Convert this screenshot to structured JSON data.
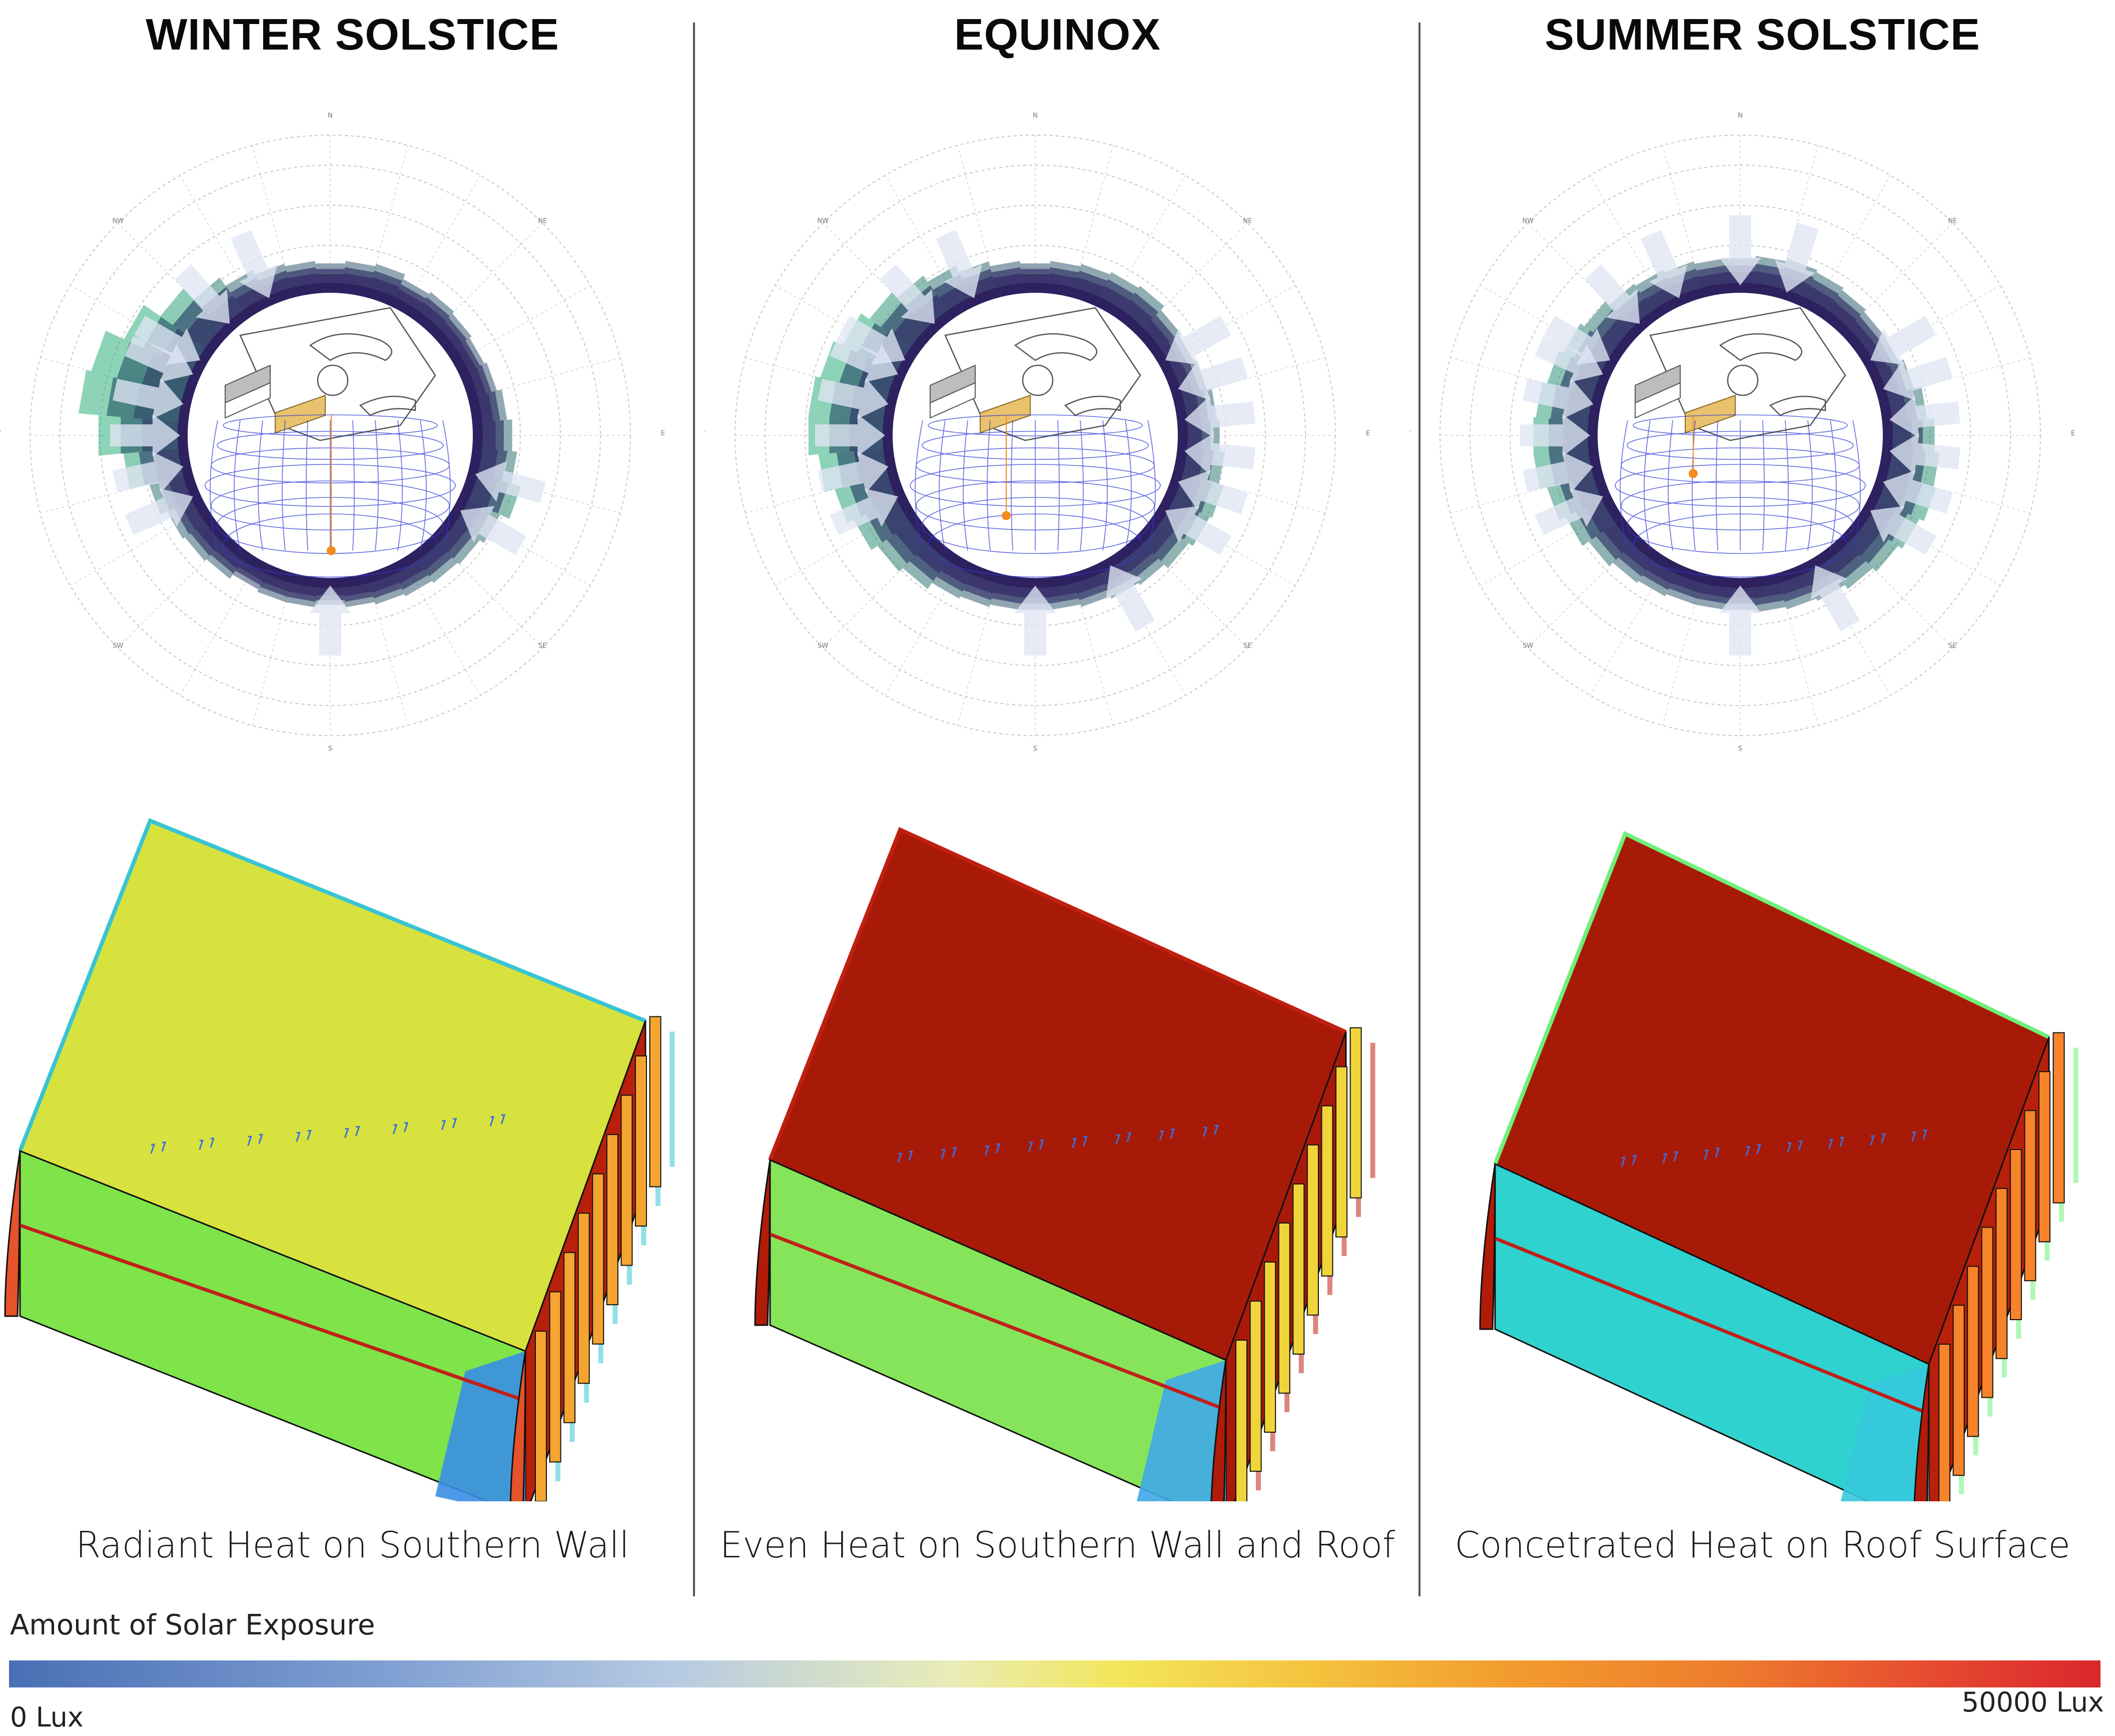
{
  "panels": [
    {
      "title": "WINTER SOLSTICE",
      "caption": "Radiant Heat on Southern Wall"
    },
    {
      "title": "EQUINOX",
      "caption": "Even Heat on Southern Wall and Roof"
    },
    {
      "title": "SUMMER SOLSTICE",
      "caption": "Concetrated Heat on Roof Surface"
    }
  ],
  "legend": {
    "title": "Amount of Solar Exposure",
    "min_label": "0 Lux",
    "max_label": "50000 Lux",
    "colors": [
      "#4a6fb5",
      "#b7cbe2",
      "#f3e65a",
      "#f29b2e",
      "#d9272c"
    ]
  },
  "colors": {
    "rose_low": "#3b2a6b",
    "rose_high": "#2fae7d",
    "sunpath": "#2f3bd6",
    "sun_marker": "#f28c1c",
    "roof_winter": "#d8e23e",
    "roof_hot": "#a81a08"
  },
  "compass": {
    "n": "N",
    "s": "S",
    "e": "E",
    "w": "W",
    "ne": "NE",
    "nw": "NW",
    "se": "SE",
    "sw": "SW"
  }
}
